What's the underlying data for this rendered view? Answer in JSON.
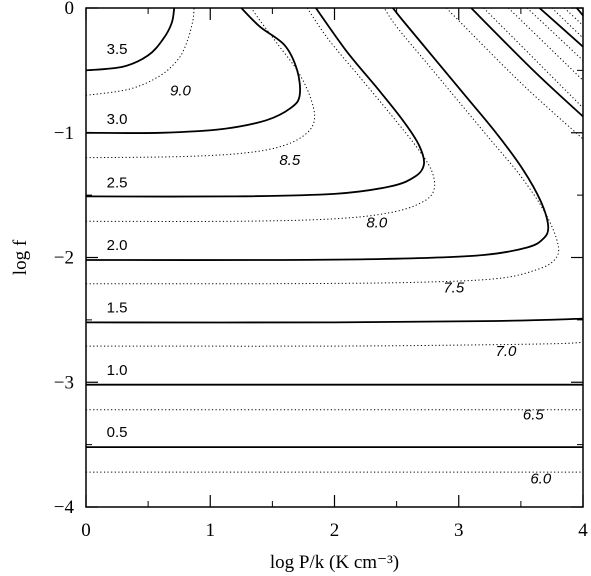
{
  "chart_data": {
    "type": "line",
    "title": "",
    "xlabel": "log P/k (K cm⁻³)",
    "ylabel": "log f",
    "xlim": [
      0,
      4
    ],
    "ylim": [
      -4,
      0
    ],
    "x_ticks": [
      "0",
      "1",
      "2",
      "3",
      "4"
    ],
    "y_ticks": [
      "0",
      "−1",
      "−2",
      "−3",
      "−4"
    ],
    "grid": false,
    "legend": "none",
    "solid_series": [
      {
        "name": "3.5",
        "points": [
          [
            0,
            -0.5
          ],
          [
            0.3,
            -0.47
          ],
          [
            0.5,
            -0.38
          ],
          [
            0.62,
            -0.25
          ],
          [
            0.69,
            -0.12
          ],
          [
            0.71,
            0
          ]
        ]
      },
      {
        "name": "3.0",
        "points": [
          [
            0,
            -1.0
          ],
          [
            0.6,
            -1.0
          ],
          [
            1.1,
            -0.97
          ],
          [
            1.45,
            -0.9
          ],
          [
            1.65,
            -0.8
          ],
          [
            1.72,
            -0.7
          ],
          [
            1.7,
            -0.5
          ],
          [
            1.6,
            -0.3
          ],
          [
            1.4,
            -0.15
          ],
          [
            1.25,
            0
          ]
        ]
      },
      {
        "name": "2.5",
        "points": [
          [
            0,
            -1.51
          ],
          [
            1.2,
            -1.51
          ],
          [
            2.0,
            -1.49
          ],
          [
            2.45,
            -1.43
          ],
          [
            2.65,
            -1.35
          ],
          [
            2.72,
            -1.25
          ],
          [
            2.68,
            -1.1
          ],
          [
            2.55,
            -0.9
          ],
          [
            2.35,
            -0.65
          ],
          [
            2.1,
            -0.35
          ],
          [
            1.85,
            0
          ]
        ]
      },
      {
        "name": "2.0",
        "points": [
          [
            0,
            -2.02
          ],
          [
            1.5,
            -2.02
          ],
          [
            2.5,
            -2.01
          ],
          [
            3.2,
            -1.98
          ],
          [
            3.55,
            -1.92
          ],
          [
            3.68,
            -1.85
          ],
          [
            3.72,
            -1.75
          ],
          [
            3.66,
            -1.55
          ],
          [
            3.52,
            -1.3
          ],
          [
            3.3,
            -1.0
          ],
          [
            3.05,
            -0.7
          ],
          [
            2.8,
            -0.4
          ],
          [
            2.55,
            -0.1
          ],
          [
            2.47,
            0
          ]
        ]
      },
      {
        "name": "1.5",
        "points": [
          [
            0,
            -2.52
          ],
          [
            2.0,
            -2.52
          ],
          [
            3.2,
            -2.51
          ],
          [
            3.7,
            -2.5
          ],
          [
            4.0,
            -2.49
          ]
        ]
      },
      {
        "name": "1.0",
        "points": [
          [
            0,
            -3.02
          ],
          [
            4.0,
            -3.02
          ]
        ]
      },
      {
        "name": "0.5",
        "points": [
          [
            0,
            -3.52
          ],
          [
            4.0,
            -3.52
          ]
        ]
      }
    ],
    "solid_extra": [
      [
        [
          3.1,
          0
        ],
        [
          3.6,
          -0.5
        ],
        [
          4.0,
          -0.87
        ]
      ],
      [
        [
          3.65,
          0
        ],
        [
          4.0,
          -0.31
        ]
      ],
      [
        [
          3.95,
          0
        ],
        [
          4.0,
          -0.06
        ]
      ]
    ],
    "dotted_series": [
      {
        "name": "9.0",
        "points": [
          [
            0,
            -0.7
          ],
          [
            0.35,
            -0.65
          ],
          [
            0.6,
            -0.54
          ],
          [
            0.75,
            -0.4
          ],
          [
            0.82,
            -0.25
          ],
          [
            0.86,
            -0.1
          ],
          [
            0.87,
            0
          ]
        ]
      },
      {
        "name": "8.5",
        "points": [
          [
            0,
            -1.2
          ],
          [
            0.8,
            -1.19
          ],
          [
            1.3,
            -1.16
          ],
          [
            1.6,
            -1.1
          ],
          [
            1.78,
            -1.0
          ],
          [
            1.84,
            -0.88
          ],
          [
            1.8,
            -0.7
          ],
          [
            1.7,
            -0.5
          ],
          [
            1.55,
            -0.3
          ],
          [
            1.4,
            -0.1
          ],
          [
            1.33,
            0
          ]
        ]
      },
      {
        "name": "8.0",
        "points": [
          [
            0,
            -1.71
          ],
          [
            1.2,
            -1.71
          ],
          [
            2.0,
            -1.69
          ],
          [
            2.45,
            -1.64
          ],
          [
            2.7,
            -1.56
          ],
          [
            2.8,
            -1.46
          ],
          [
            2.78,
            -1.3
          ],
          [
            2.65,
            -1.1
          ],
          [
            2.45,
            -0.85
          ],
          [
            2.2,
            -0.55
          ],
          [
            1.95,
            -0.25
          ],
          [
            1.78,
            0
          ]
        ]
      },
      {
        "name": "7.5",
        "points": [
          [
            0,
            -2.21
          ],
          [
            1.5,
            -2.21
          ],
          [
            2.6,
            -2.2
          ],
          [
            3.3,
            -2.17
          ],
          [
            3.62,
            -2.1
          ],
          [
            3.77,
            -2.02
          ],
          [
            3.8,
            -1.9
          ],
          [
            3.7,
            -1.65
          ],
          [
            3.5,
            -1.35
          ],
          [
            3.25,
            -1.05
          ],
          [
            3.0,
            -0.75
          ],
          [
            2.75,
            -0.45
          ],
          [
            2.5,
            -0.15
          ],
          [
            2.4,
            0
          ]
        ]
      },
      {
        "name": "7.0",
        "points": [
          [
            0,
            -2.71
          ],
          [
            2.0,
            -2.71
          ],
          [
            3.2,
            -2.7
          ],
          [
            3.8,
            -2.69
          ],
          [
            4.0,
            -2.68
          ]
        ]
      },
      {
        "name": "6.5",
        "points": [
          [
            0,
            -3.22
          ],
          [
            4.0,
            -3.22
          ]
        ]
      },
      {
        "name": "6.0",
        "points": [
          [
            0,
            -3.72
          ],
          [
            4.0,
            -3.72
          ]
        ]
      }
    ],
    "dotted_extra": [
      [
        [
          2.9,
          0
        ],
        [
          3.5,
          -0.6
        ],
        [
          4.0,
          -1.05
        ]
      ],
      [
        [
          3.2,
          0
        ],
        [
          3.7,
          -0.5
        ],
        [
          4.0,
          -0.8
        ]
      ],
      [
        [
          3.4,
          0
        ],
        [
          4.0,
          -0.58
        ]
      ],
      [
        [
          3.55,
          0
        ],
        [
          4.0,
          -0.42
        ]
      ],
      [
        [
          3.75,
          0
        ],
        [
          4.0,
          -0.24
        ]
      ],
      [
        [
          3.85,
          0
        ],
        [
          4.0,
          -0.14
        ]
      ]
    ],
    "solid_labels": [
      {
        "text": "3.5",
        "x": 0.25,
        "y": -0.37
      },
      {
        "text": "3.0",
        "x": 0.25,
        "y": -0.93
      },
      {
        "text": "2.5",
        "x": 0.25,
        "y": -1.44
      },
      {
        "text": "2.0",
        "x": 0.25,
        "y": -1.94
      },
      {
        "text": "1.5",
        "x": 0.25,
        "y": -2.44
      },
      {
        "text": "1.0",
        "x": 0.25,
        "y": -2.94
      },
      {
        "text": "0.5",
        "x": 0.25,
        "y": -3.44
      }
    ],
    "dotted_labels": [
      {
        "text": "9.0",
        "x": 0.76,
        "y": -0.7
      },
      {
        "text": "8.5",
        "x": 1.64,
        "y": -1.26
      },
      {
        "text": "8.0",
        "x": 2.34,
        "y": -1.76
      },
      {
        "text": "7.5",
        "x": 2.96,
        "y": -2.28
      },
      {
        "text": "7.0",
        "x": 3.38,
        "y": -2.79
      },
      {
        "text": "6.5",
        "x": 3.6,
        "y": -3.3
      },
      {
        "text": "6.0",
        "x": 3.66,
        "y": -3.81
      }
    ]
  }
}
